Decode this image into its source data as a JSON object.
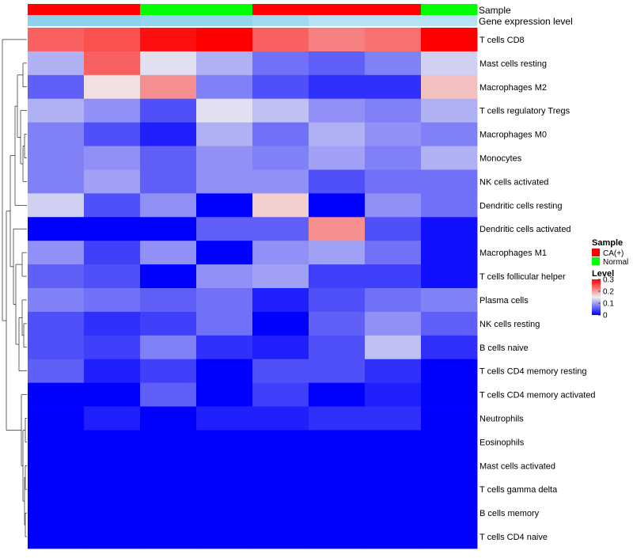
{
  "chart_data": {
    "type": "heatmap",
    "title": "",
    "color_scale": {
      "low": "#0000ff",
      "mid": "#f0f0f0",
      "high": "#ff0000",
      "min": 0,
      "mid_value": 0.15,
      "max": 0.3
    },
    "annotations": [
      {
        "name": "Sample",
        "values": [
          "CA(+)",
          "CA(+)",
          "Normal",
          "Normal",
          "CA(+)",
          "CA(+)",
          "CA(+)",
          "Normal"
        ],
        "colors": {
          "CA(+)": "#ff0000",
          "Normal": "#00ff00"
        }
      },
      {
        "name": "Gene expression level",
        "values": [
          0.96,
          0.96,
          0.88,
          0.88,
          0.78,
          0.6,
          0.6,
          0.6
        ],
        "color_low": "#ffffff",
        "color_high": "#87ceeb"
      }
    ],
    "rows": [
      "T cells CD8",
      "Mast cells resting",
      "Macrophages M2",
      "T cells regulatory  Tregs",
      "Macrophages M0",
      "Monocytes",
      "NK cells activated",
      "Dendritic cells resting",
      "Dendritic cells activated",
      "Macrophages M1",
      "T cells follicular helper",
      "Plasma cells",
      "NK cells resting",
      "B cells naive",
      "T cells CD4 memory resting",
      "T cells CD4 memory activated",
      "Neutrophils",
      "Eosinophils",
      "Mast cells activated",
      "T cells gamma delta",
      "B cells memory",
      "T cells CD4 naive"
    ],
    "values": [
      [
        0.24,
        0.25,
        0.29,
        0.3,
        0.24,
        0.22,
        0.23,
        0.3
      ],
      [
        0.11,
        0.24,
        0.14,
        0.11,
        0.07,
        0.06,
        0.08,
        0.13
      ],
      [
        0.06,
        0.16,
        0.21,
        0.08,
        0.05,
        0.03,
        0.03,
        0.18
      ],
      [
        0.11,
        0.09,
        0.05,
        0.14,
        0.12,
        0.09,
        0.08,
        0.11
      ],
      [
        0.08,
        0.05,
        0.02,
        0.11,
        0.07,
        0.11,
        0.09,
        0.08
      ],
      [
        0.08,
        0.09,
        0.06,
        0.09,
        0.08,
        0.1,
        0.08,
        0.11
      ],
      [
        0.08,
        0.1,
        0.06,
        0.09,
        0.09,
        0.05,
        0.07,
        0.07
      ],
      [
        0.13,
        0.05,
        0.09,
        0.0,
        0.17,
        0.0,
        0.09,
        0.07
      ],
      [
        0.0,
        0.0,
        0.0,
        0.06,
        0.06,
        0.21,
        0.05,
        0.01
      ],
      [
        0.09,
        0.04,
        0.09,
        0.0,
        0.09,
        0.1,
        0.07,
        0.01
      ],
      [
        0.06,
        0.05,
        0.0,
        0.09,
        0.1,
        0.04,
        0.04,
        0.01
      ],
      [
        0.08,
        0.07,
        0.06,
        0.07,
        0.02,
        0.05,
        0.07,
        0.08
      ],
      [
        0.05,
        0.03,
        0.04,
        0.07,
        0.0,
        0.06,
        0.09,
        0.06
      ],
      [
        0.05,
        0.04,
        0.08,
        0.03,
        0.02,
        0.05,
        0.12,
        0.03
      ],
      [
        0.06,
        0.02,
        0.04,
        0.0,
        0.05,
        0.05,
        0.03,
        0.0
      ],
      [
        0.0,
        0.0,
        0.06,
        0.0,
        0.04,
        0.0,
        0.02,
        0.0
      ],
      [
        0.0,
        0.02,
        0.0,
        0.02,
        0.02,
        0.03,
        0.03,
        0.0
      ],
      [
        0.0,
        0.0,
        0.0,
        0.0,
        0.0,
        0.0,
        0.0,
        0.0
      ],
      [
        0.0,
        0.0,
        0.0,
        0.0,
        0.0,
        0.0,
        0.0,
        0.0
      ],
      [
        0.0,
        0.0,
        0.0,
        0.0,
        0.0,
        0.0,
        0.0,
        0.0
      ],
      [
        0.0,
        0.0,
        0.0,
        0.0,
        0.0,
        0.0,
        0.0,
        0.0
      ],
      [
        0.0,
        0.0,
        0.0,
        0.0,
        0.0,
        0.0,
        0.0,
        0.0
      ]
    ],
    "legend": {
      "sample_title": "Sample",
      "sample_items": [
        {
          "label": "CA(+)",
          "color": "#ff0000"
        },
        {
          "label": "Normal",
          "color": "#00ff00"
        }
      ],
      "level_title": "Level",
      "level_ticks": [
        {
          "value": 0.3,
          "label": "0.3"
        },
        {
          "value": 0.2,
          "label": "0.2"
        },
        {
          "value": 0.1,
          "label": "0.1"
        },
        {
          "value": 0.0,
          "label": "0"
        }
      ]
    },
    "row_dendrogram": true
  }
}
